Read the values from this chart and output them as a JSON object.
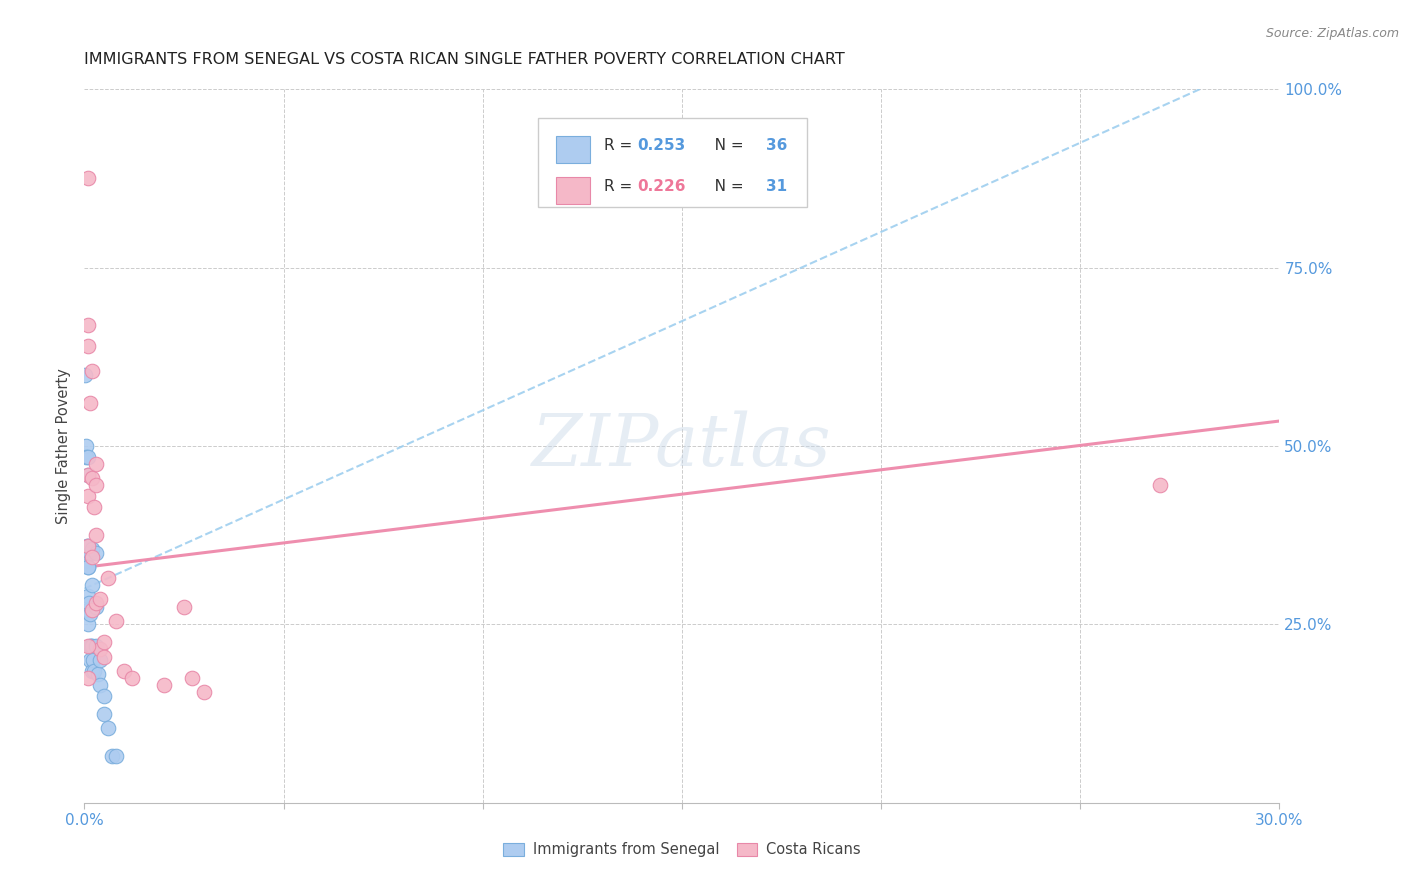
{
  "title": "IMMIGRANTS FROM SENEGAL VS COSTA RICAN SINGLE FATHER POVERTY CORRELATION CHART",
  "source": "Source: ZipAtlas.com",
  "ylabel": "Single Father Poverty",
  "color_blue_fill": "#aeccf0",
  "color_pink_fill": "#f5b8c8",
  "color_blue_edge": "#7aaedd",
  "color_pink_edge": "#e888a8",
  "color_blue_text": "#5599dd",
  "color_pink_text": "#ee7799",
  "color_blue_line": "#99ccee",
  "color_pink_line": "#ee88aa",
  "color_grid": "#cccccc",
  "xlim": [
    0.0,
    0.3
  ],
  "ylim": [
    0.0,
    1.0
  ],
  "sen_x": [
    0.0002,
    0.0004,
    0.0005,
    0.0006,
    0.0007,
    0.0008,
    0.0009,
    0.001,
    0.001,
    0.001,
    0.001,
    0.001,
    0.001,
    0.0012,
    0.0013,
    0.0014,
    0.0015,
    0.0015,
    0.0017,
    0.0018,
    0.002,
    0.002,
    0.002,
    0.0022,
    0.0025,
    0.003,
    0.003,
    0.003,
    0.0035,
    0.004,
    0.004,
    0.005,
    0.005,
    0.006,
    0.007,
    0.008
  ],
  "sen_y": [
    0.6,
    0.5,
    0.485,
    0.36,
    0.35,
    0.33,
    0.29,
    0.485,
    0.46,
    0.36,
    0.33,
    0.27,
    0.25,
    0.28,
    0.265,
    0.22,
    0.35,
    0.2,
    0.22,
    0.185,
    0.355,
    0.305,
    0.22,
    0.2,
    0.185,
    0.35,
    0.275,
    0.22,
    0.18,
    0.2,
    0.165,
    0.15,
    0.125,
    0.105,
    0.065,
    0.065
  ],
  "cr_x": [
    0.001,
    0.001,
    0.001,
    0.001,
    0.001,
    0.001,
    0.0015,
    0.002,
    0.002,
    0.002,
    0.002,
    0.0025,
    0.003,
    0.003,
    0.003,
    0.003,
    0.004,
    0.004,
    0.005,
    0.005,
    0.006,
    0.008,
    0.01,
    0.012,
    0.02,
    0.025,
    0.027,
    0.03,
    0.27,
    0.001,
    0.001
  ],
  "cr_y": [
    0.875,
    0.67,
    0.64,
    0.46,
    0.43,
    0.36,
    0.56,
    0.605,
    0.455,
    0.345,
    0.27,
    0.415,
    0.475,
    0.445,
    0.375,
    0.28,
    0.285,
    0.215,
    0.225,
    0.205,
    0.315,
    0.255,
    0.185,
    0.175,
    0.165,
    0.275,
    0.175,
    0.155,
    0.445,
    0.22,
    0.175
  ],
  "blue_line_x": [
    0.0,
    0.3
  ],
  "blue_line_y": [
    0.3,
    1.05
  ],
  "pink_line_x": [
    0.0,
    0.3
  ],
  "pink_line_y": [
    0.33,
    0.535
  ],
  "xticks": [
    0.0,
    0.05,
    0.1,
    0.15,
    0.2,
    0.25,
    0.3
  ],
  "yticks": [
    0.0,
    0.25,
    0.5,
    0.75,
    1.0
  ],
  "ytick_labels": [
    "",
    "25.0%",
    "50.0%",
    "75.0%",
    "100.0%"
  ]
}
